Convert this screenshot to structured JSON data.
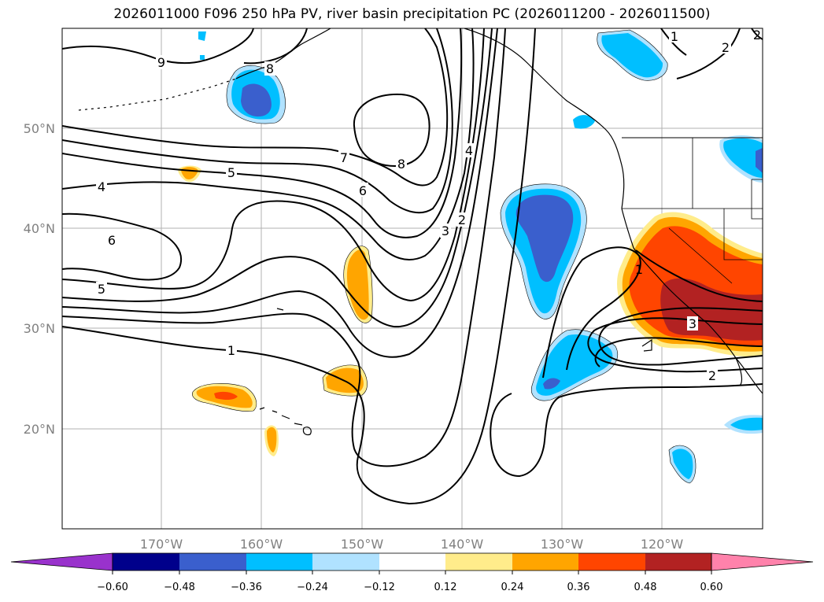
{
  "title": "2026011000 F096 250 hPa PV, river basin precipitation PC (2026011200 - 2026011500)",
  "map": {
    "lat_labels": [
      "50°N",
      "40°N",
      "30°N",
      "20°N"
    ],
    "lon_labels": [
      "170°W",
      "160°W",
      "150°W",
      "140°W",
      "130°W",
      "120°W"
    ],
    "contour_labels": [
      "9",
      "8",
      "7",
      "8",
      "5",
      "6",
      "4",
      "6",
      "5",
      "4",
      "3",
      "2",
      "1",
      "3",
      "2",
      "1",
      "2",
      "1",
      "2"
    ]
  },
  "colorbar": {
    "ticks": [
      "−0.60",
      "−0.48",
      "−0.36",
      "−0.24",
      "−0.12",
      "0.12",
      "0.24",
      "0.36",
      "0.48",
      "0.60"
    ],
    "colors": [
      "#9932cc",
      "#00008b",
      "#3a5fcd",
      "#00bfff",
      "#b0e2ff",
      "#ffffff",
      "#ffec8b",
      "#ffa500",
      "#ff4500",
      "#b22222",
      "#ff82ab"
    ]
  }
}
